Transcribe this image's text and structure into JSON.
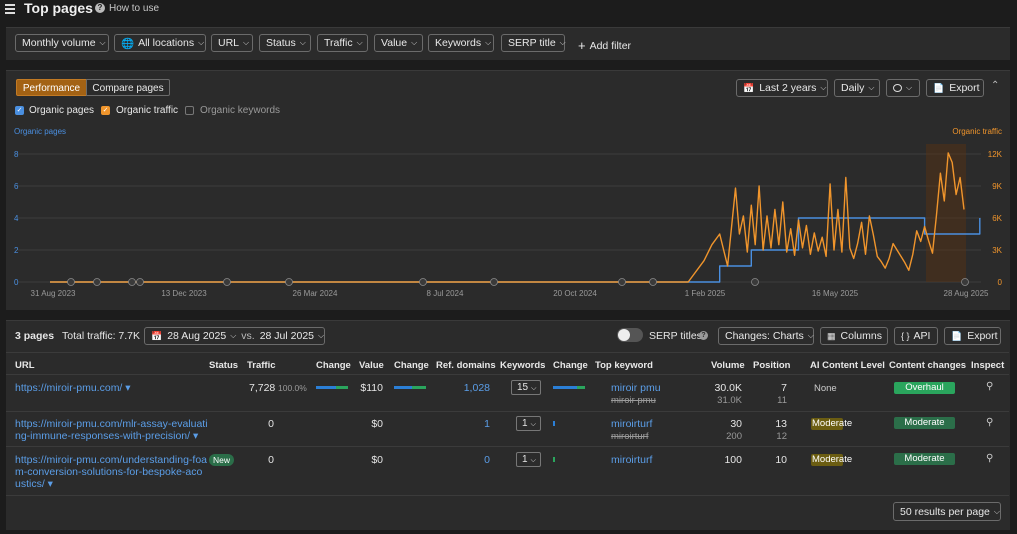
{
  "header": {
    "title": "Top pages",
    "how_to_use": "How to use"
  },
  "filters": {
    "monthly_volume": "Monthly volume",
    "locations": "All locations",
    "url": "URL",
    "status": "Status",
    "traffic": "Traffic",
    "value": "Value",
    "keywords": "Keywords",
    "serp_title": "SERP title",
    "add_filter": "Add filter"
  },
  "chart_panel": {
    "tabs": [
      "Performance",
      "Compare pages"
    ],
    "date_range": "Last 2 years",
    "granularity": "Daily",
    "export": "Export",
    "legend": {
      "organic_pages": "Organic pages",
      "organic_traffic": "Organic traffic",
      "organic_keywords": "Organic keywords"
    },
    "colors": {
      "pages": "#4a8fe0",
      "traffic": "#f0952c",
      "accent": "#a36214"
    }
  },
  "chart_data": {
    "type": "line",
    "left_axis_label": "Organic pages",
    "right_axis_label": "Organic traffic",
    "left_ticks": [
      "0",
      "2",
      "4",
      "6",
      "8"
    ],
    "right_ticks": [
      "0",
      "3K",
      "6K",
      "9K",
      "12K"
    ],
    "x_ticks": [
      "31 Aug 2023",
      "13 Dec 2023",
      "26 Mar 2024",
      "8 Jul 2024",
      "20 Oct 2024",
      "1 Feb 2025",
      "16 May 2025",
      "28 Aug 2025"
    ],
    "ylim_left": [
      0,
      8
    ],
    "ylim_right": [
      0,
      12000
    ],
    "series": [
      {
        "name": "Organic pages",
        "axis": "left",
        "color": "#4a8fe0",
        "points": [
          [
            0,
            0
          ],
          [
            0.85,
            0
          ],
          [
            0.85,
            1
          ],
          [
            0.89,
            1
          ],
          [
            0.89,
            2
          ],
          [
            0.92,
            2
          ],
          [
            0.92,
            2
          ],
          [
            0.95,
            2
          ],
          [
            0.95,
            4
          ],
          [
            0.97,
            4
          ],
          [
            0.97,
            4
          ],
          [
            1.0,
            4
          ],
          [
            1.0,
            4
          ],
          [
            1.11,
            4
          ],
          [
            1.11,
            3
          ],
          [
            1.18,
            3
          ],
          [
            1.18,
            4
          ]
        ]
      },
      {
        "name": "Organic traffic",
        "axis": "right",
        "color": "#f0952c",
        "points": [
          [
            0,
            0
          ],
          [
            0.81,
            0
          ],
          [
            0.83,
            2000
          ],
          [
            0.84,
            3500
          ],
          [
            0.85,
            4500
          ],
          [
            0.86,
            1500
          ],
          [
            0.87,
            8800
          ],
          [
            0.875,
            4500
          ],
          [
            0.88,
            6200
          ],
          [
            0.885,
            2800
          ],
          [
            0.89,
            7200
          ],
          [
            0.895,
            3500
          ],
          [
            0.9,
            9000
          ],
          [
            0.905,
            3000
          ],
          [
            0.91,
            6200
          ],
          [
            0.915,
            3200
          ],
          [
            0.92,
            6800
          ],
          [
            0.925,
            3500
          ],
          [
            0.93,
            7500
          ],
          [
            0.935,
            2800
          ],
          [
            0.94,
            5000
          ],
          [
            0.945,
            2500
          ],
          [
            0.95,
            5800
          ],
          [
            0.955,
            3200
          ],
          [
            0.96,
            5300
          ],
          [
            0.965,
            2600
          ],
          [
            0.97,
            4600
          ],
          [
            0.975,
            2900
          ],
          [
            0.98,
            4200
          ],
          [
            0.985,
            2400
          ],
          [
            0.99,
            9200
          ],
          [
            0.995,
            3000
          ],
          [
            1.0,
            6800
          ],
          [
            1.005,
            2800
          ],
          [
            1.01,
            9800
          ],
          [
            1.015,
            3200
          ],
          [
            1.02,
            2200
          ],
          [
            1.025,
            3600
          ],
          [
            1.03,
            5600
          ],
          [
            1.035,
            2600
          ],
          [
            1.04,
            6200
          ],
          [
            1.045,
            4400
          ],
          [
            1.05,
            2400
          ],
          [
            1.055,
            1900
          ],
          [
            1.06,
            1300
          ],
          [
            1.065,
            2200
          ],
          [
            1.07,
            3600
          ],
          [
            1.075,
            3000
          ],
          [
            1.08,
            2400
          ],
          [
            1.085,
            1800
          ],
          [
            1.09,
            1100
          ],
          [
            1.095,
            2600
          ],
          [
            1.1,
            4800
          ],
          [
            1.105,
            3800
          ],
          [
            1.11,
            5200
          ],
          [
            1.115,
            3900
          ],
          [
            1.12,
            2700
          ],
          [
            1.125,
            6200
          ],
          [
            1.13,
            10200
          ],
          [
            1.135,
            7600
          ],
          [
            1.14,
            12100
          ],
          [
            1.145,
            11200
          ],
          [
            1.15,
            8200
          ],
          [
            1.155,
            9800
          ],
          [
            1.16,
            6800
          ]
        ]
      }
    ]
  },
  "table": {
    "summary": {
      "pages": "3 pages",
      "total_traffic": "Total traffic: 7.7K",
      "date_a": "28 Aug 2025",
      "vs": "vs.",
      "date_b": "28 Jul 2025"
    },
    "controls": {
      "serp_titles": "SERP titles",
      "changes": "Changes: Charts",
      "columns": "Columns",
      "api": "API",
      "export": "Export"
    },
    "headers": [
      "URL",
      "Status",
      "Traffic",
      "Change",
      "Value",
      "Change",
      "Ref. domains",
      "Keywords",
      "Change",
      "Top keyword",
      "Volume",
      "Position",
      "AI Content Level",
      "Content changes",
      "Inspect"
    ],
    "rows": [
      {
        "url": [
          "https://miroir-pmu.com/ ▾"
        ],
        "status": "",
        "traffic": "7,728",
        "traffic_pct": "100.0%",
        "value": "$110",
        "ref_domains": "1,028",
        "keywords": "15",
        "top_keyword": "miroir pmu",
        "top_keyword_old": "miroir pmu",
        "volume": "30.0K",
        "volume_old": "31.0K",
        "position": "7",
        "position_old": "11",
        "ai_level": "None",
        "content_change": "Overhaul"
      },
      {
        "url": [
          "https://miroir-pmu.com/mlr-assay-evaluati",
          "ng-immune-responses-with-precision/ ▾"
        ],
        "status": "",
        "traffic": "0",
        "traffic_pct": "",
        "value": "$0",
        "ref_domains": "1",
        "keywords": "1",
        "top_keyword": "miroirturf",
        "top_keyword_old": "miroirturf",
        "volume": "30",
        "volume_old": "200",
        "position": "13",
        "position_old": "12",
        "ai_level": "Moderate",
        "content_change": "Moderate"
      },
      {
        "url": [
          "https://miroir-pmu.com/understanding-foa",
          "m-conversion-solutions-for-bespoke-aco",
          "ustics/ ▾"
        ],
        "status": "New",
        "traffic": "0",
        "traffic_pct": "",
        "value": "$0",
        "ref_domains": "0",
        "keywords": "1",
        "top_keyword": "miroirturf",
        "top_keyword_old": "",
        "volume": "100",
        "volume_old": "",
        "position": "10",
        "position_old": "",
        "ai_level": "Moderate",
        "content_change": "Moderate"
      }
    ],
    "pagination": "50 results per page"
  }
}
